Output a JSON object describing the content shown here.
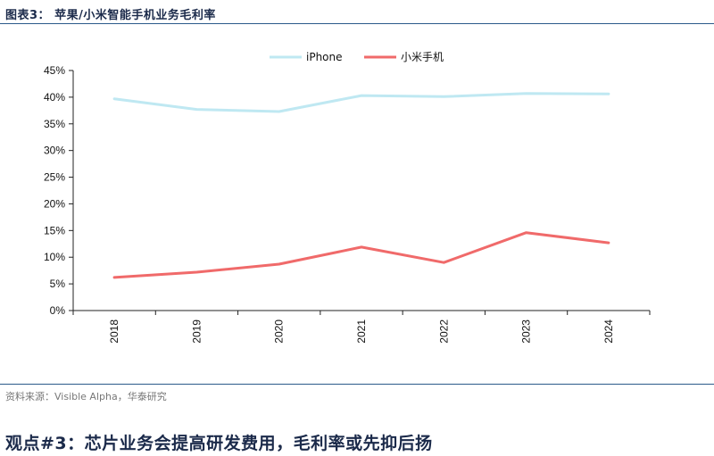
{
  "figure_title": "图表3：  苹果/小米智能手机业务毛利率",
  "source": "资料来源：Visible Alpha，华泰研究",
  "viewpoint": "观点#3：芯片业务会提高研发费用，毛利率或先抑后扬",
  "colors": {
    "iphone": "#bfe8f2",
    "xiaomi": "#f06a6a",
    "axis": "#222222",
    "rule": "#2b5a8a"
  },
  "chart_data": {
    "type": "line",
    "x": [
      "2018",
      "2019",
      "2020",
      "2021",
      "2022",
      "2023",
      "2024"
    ],
    "series": [
      {
        "name": "iPhone",
        "values": [
          39.7,
          37.7,
          37.3,
          40.3,
          40.1,
          40.7,
          40.6
        ]
      },
      {
        "name": "小米手机",
        "values": [
          6.2,
          7.2,
          8.7,
          11.9,
          9.0,
          14.6,
          12.7
        ]
      }
    ],
    "ylim": [
      0,
      45
    ],
    "yticks": [
      "0%",
      "5%",
      "10%",
      "15%",
      "20%",
      "25%",
      "30%",
      "35%",
      "40%",
      "45%"
    ],
    "ytick_values": [
      0,
      5,
      10,
      15,
      20,
      25,
      30,
      35,
      40,
      45
    ],
    "grid": false,
    "legend": "top"
  }
}
